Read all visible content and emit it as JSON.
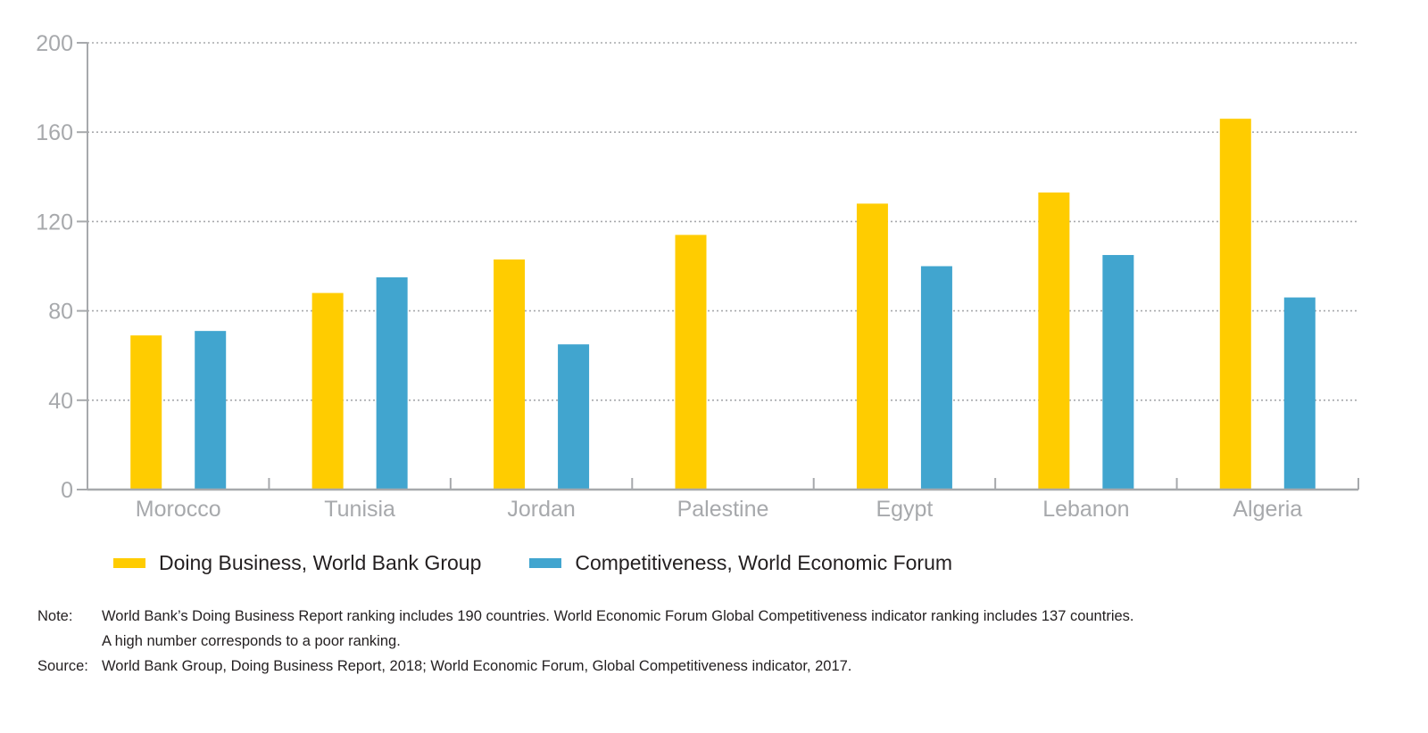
{
  "chart_data": {
    "type": "bar",
    "categories": [
      "Morocco",
      "Tunisia",
      "Jordan",
      "Palestine",
      "Egypt",
      "Lebanon",
      "Algeria"
    ],
    "series": [
      {
        "name": "Doing Business, World Bank Group",
        "color": "#ffcc00",
        "values": [
          69,
          88,
          103,
          114,
          128,
          133,
          166
        ]
      },
      {
        "name": "Competitiveness, World Economic Forum",
        "color": "#41a5cf",
        "values": [
          71,
          95,
          65,
          null,
          100,
          105,
          86
        ]
      }
    ],
    "yticks": [
      "0",
      "40",
      "80",
      "120",
      "160",
      "200"
    ],
    "ylim": [
      0,
      200
    ],
    "grid": true,
    "legend_position": "bottom-left"
  },
  "notes": {
    "note_label": "Note:",
    "note_line1": "World Bank’s Doing Business Report ranking includes 190 countries. World Economic Forum Global Competitiveness indicator ranking includes 137 countries.",
    "note_line2": "A high number corresponds to a poor ranking.",
    "source_label": "Source:",
    "source_text": "World Bank Group, Doing Business Report, 2018; World Economic Forum, Global Competitiveness indicator, 2017."
  },
  "colors": {
    "axis": "#a7a9ac",
    "grid": "#a7a9ac",
    "text": "#231f20"
  }
}
